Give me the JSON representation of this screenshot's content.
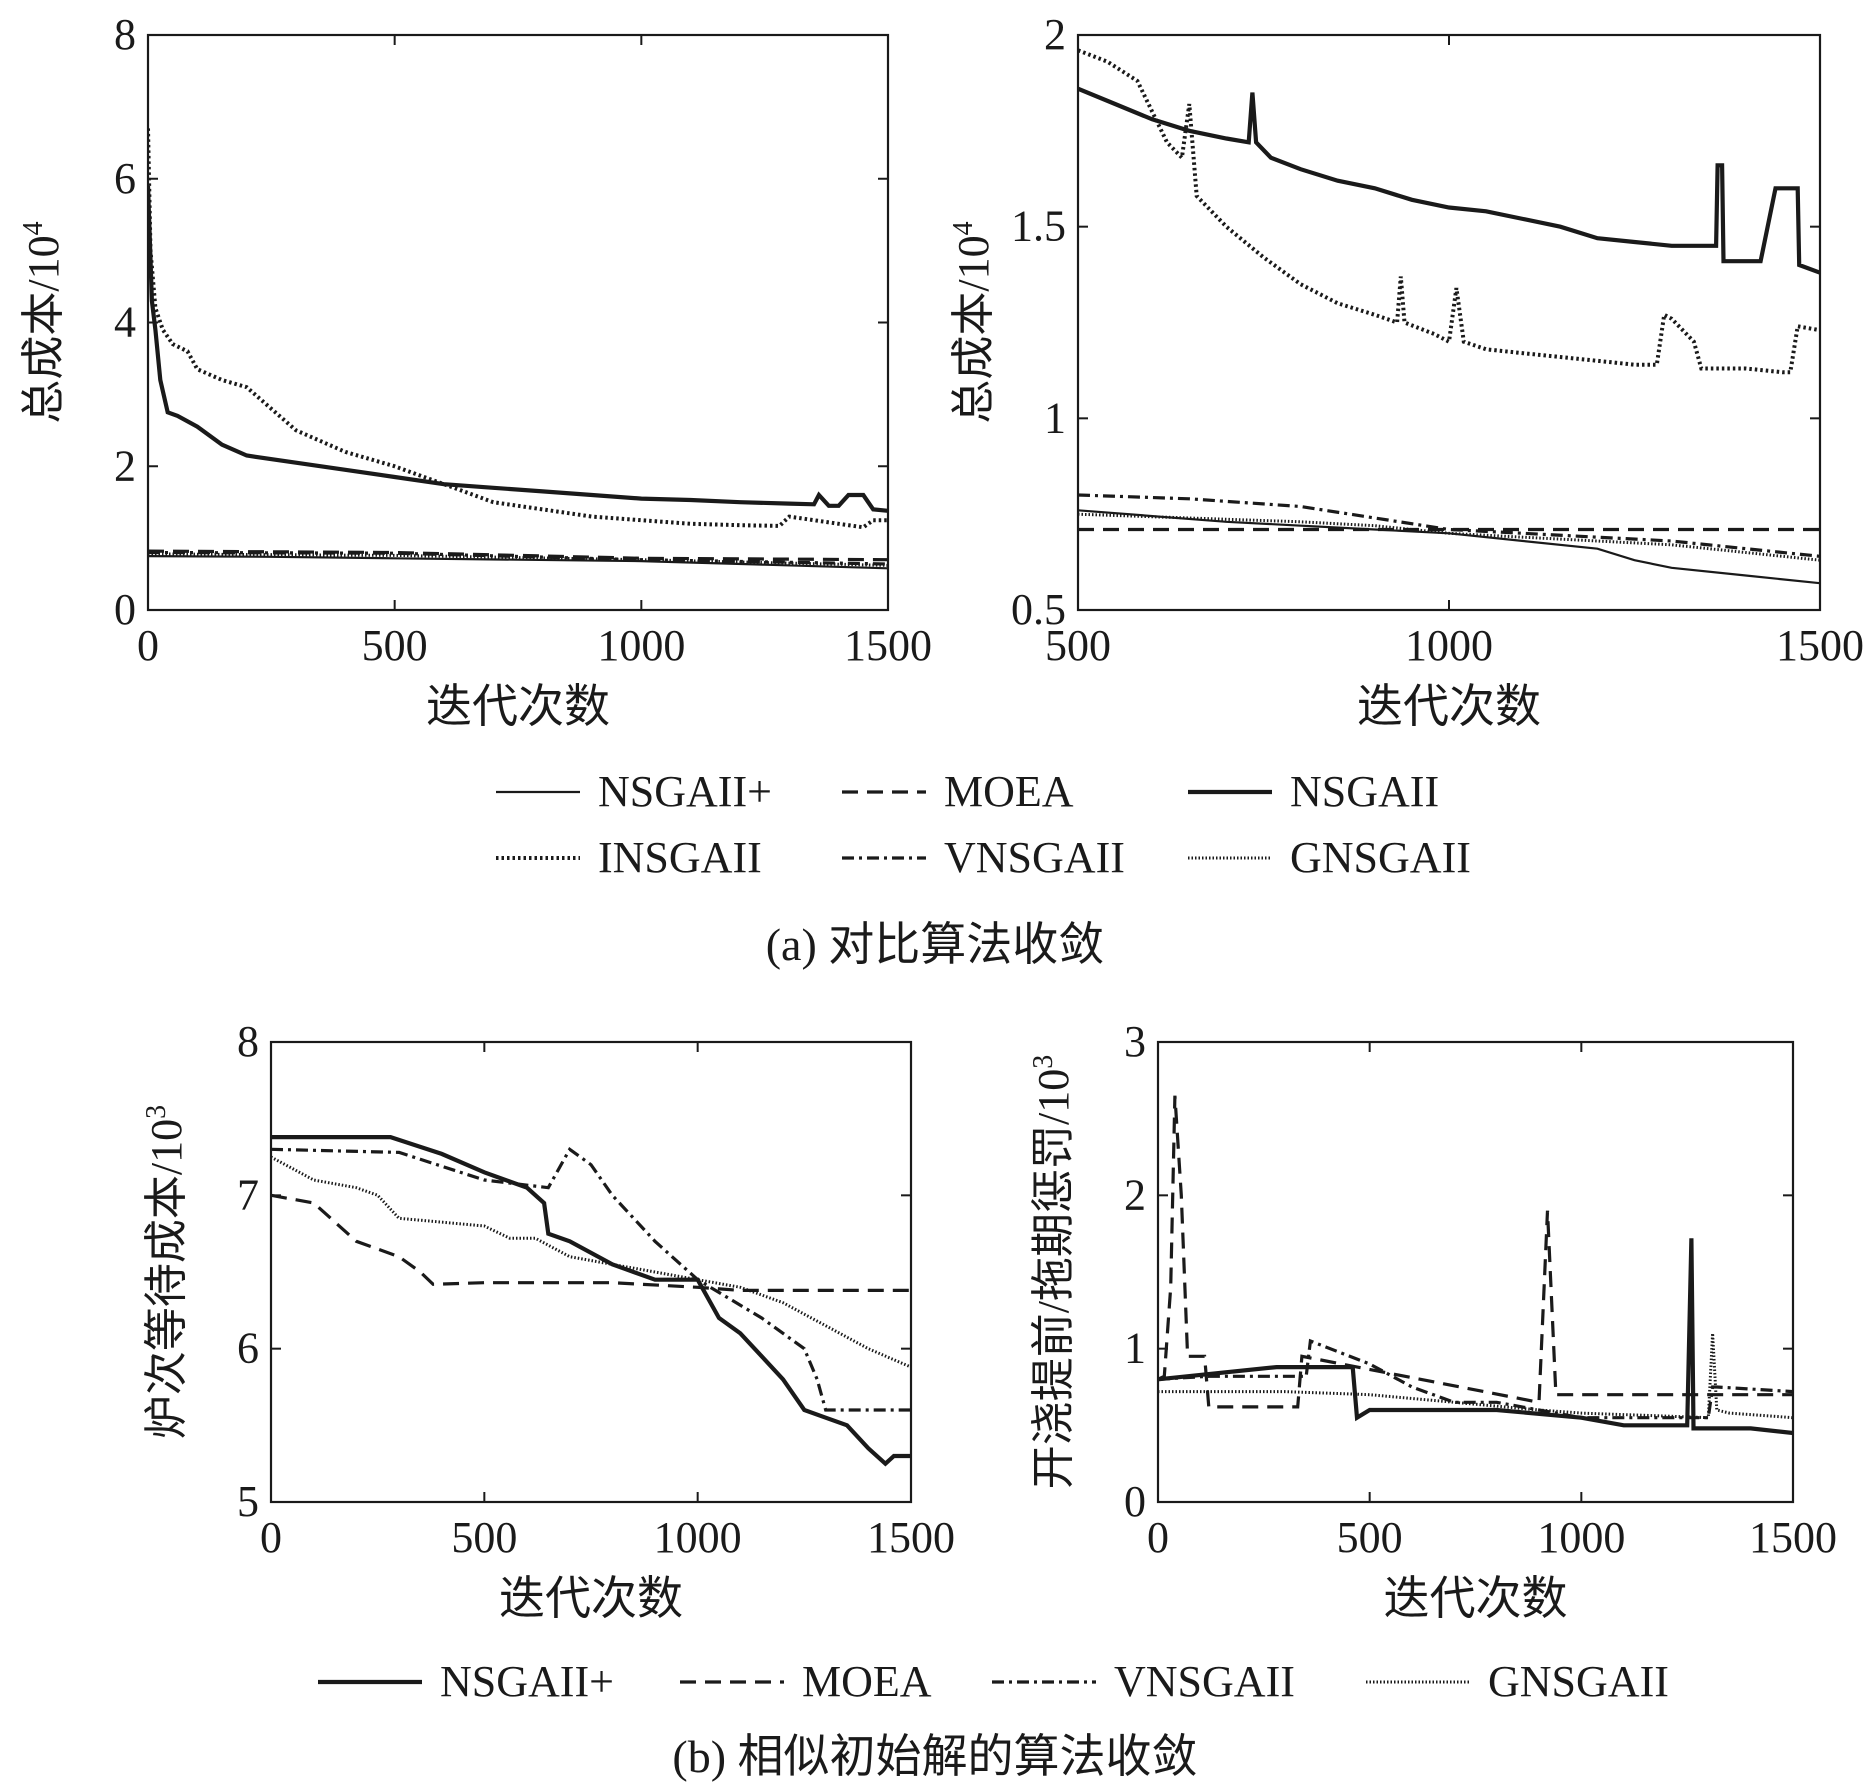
{
  "figure": {
    "panel_a": {
      "caption": "(a) 对比算法收敛",
      "legend": [
        {
          "label": "NSGAII+",
          "style": "thin-solid"
        },
        {
          "label": "MOEA",
          "style": "dashed"
        },
        {
          "label": "NSGAII",
          "style": "thick-solid"
        },
        {
          "label": "INSGAII",
          "style": "dotted"
        },
        {
          "label": "VNSGAII",
          "style": "dash-dot"
        },
        {
          "label": "GNSGAII",
          "style": "fine-dotted"
        }
      ]
    },
    "panel_b": {
      "caption": "(b) 相似初始解的算法收敛",
      "legend": [
        {
          "label": "NSGAII+",
          "style": "thick-solid"
        },
        {
          "label": "MOEA",
          "style": "dashed"
        },
        {
          "label": "VNSGAII",
          "style": "dash-dot"
        },
        {
          "label": "GNSGAII",
          "style": "fine-dotted"
        }
      ]
    }
  },
  "chart_data": [
    {
      "type": "line",
      "panel": "a-left",
      "xlabel": "迭代次数",
      "ylabel": "总成本/10",
      "ylabel_sup": "4",
      "xlim": [
        0,
        1500
      ],
      "ylim": [
        0,
        8
      ],
      "xticks": [
        "0",
        "500",
        "1000",
        "1500"
      ],
      "yticks": [
        "0",
        "2",
        "4",
        "6",
        "8"
      ],
      "series": [
        {
          "name": "NSGAII",
          "style": "thick-solid",
          "x": [
            0,
            8,
            15,
            25,
            40,
            60,
            100,
            150,
            200,
            300,
            400,
            500,
            600,
            700,
            800,
            900,
            1000,
            1100,
            1200,
            1300,
            1350,
            1360,
            1380,
            1400,
            1420,
            1450,
            1470,
            1500
          ],
          "y": [
            5.9,
            4.3,
            3.9,
            3.2,
            2.75,
            2.7,
            2.55,
            2.3,
            2.15,
            2.05,
            1.95,
            1.85,
            1.75,
            1.7,
            1.65,
            1.6,
            1.55,
            1.53,
            1.5,
            1.48,
            1.47,
            1.6,
            1.45,
            1.45,
            1.6,
            1.6,
            1.4,
            1.38
          ]
        },
        {
          "name": "INSGAII",
          "style": "dotted",
          "x": [
            0,
            5,
            15,
            30,
            50,
            80,
            100,
            150,
            200,
            250,
            300,
            400,
            500,
            600,
            700,
            800,
            900,
            1000,
            1100,
            1200,
            1280,
            1300,
            1350,
            1400,
            1450,
            1470,
            1500
          ],
          "y": [
            6.7,
            5.0,
            4.2,
            3.9,
            3.7,
            3.6,
            3.35,
            3.2,
            3.1,
            2.8,
            2.5,
            2.2,
            2.0,
            1.75,
            1.5,
            1.4,
            1.3,
            1.25,
            1.2,
            1.18,
            1.17,
            1.3,
            1.25,
            1.2,
            1.15,
            1.25,
            1.25
          ]
        },
        {
          "name": "NSGAII+",
          "style": "thin-solid",
          "x": [
            0,
            250,
            500,
            750,
            1000,
            1250,
            1500
          ],
          "y": [
            0.75,
            0.74,
            0.72,
            0.7,
            0.68,
            0.63,
            0.58
          ]
        },
        {
          "name": "MOEA",
          "style": "dashed",
          "x": [
            0,
            500,
            1000,
            1500
          ],
          "y": [
            0.82,
            0.8,
            0.72,
            0.7
          ]
        },
        {
          "name": "VNSGAII",
          "style": "dash-dot",
          "x": [
            0,
            500,
            1000,
            1500
          ],
          "y": [
            0.8,
            0.79,
            0.7,
            0.64
          ]
        },
        {
          "name": "GNSGAII",
          "style": "fine-dotted",
          "x": [
            0,
            500,
            1000,
            1500
          ],
          "y": [
            0.78,
            0.76,
            0.7,
            0.62
          ]
        }
      ]
    },
    {
      "type": "line",
      "panel": "a-right",
      "xlabel": "迭代次数",
      "ylabel": "总成本/10",
      "ylabel_sup": "4",
      "xlim": [
        500,
        1500
      ],
      "ylim": [
        0.5,
        2
      ],
      "xticks": [
        "500",
        "1000",
        "1500"
      ],
      "yticks": [
        "0.5",
        "1",
        "1.5",
        "2"
      ],
      "series": [
        {
          "name": "NSGAII",
          "style": "thick-solid",
          "x": [
            500,
            550,
            600,
            650,
            700,
            730,
            735,
            740,
            760,
            800,
            850,
            900,
            950,
            1000,
            1050,
            1100,
            1150,
            1200,
            1250,
            1300,
            1360,
            1362,
            1368,
            1370,
            1420,
            1440,
            1470,
            1472,
            1500
          ],
          "y": [
            1.86,
            1.82,
            1.78,
            1.75,
            1.73,
            1.72,
            1.85,
            1.72,
            1.68,
            1.65,
            1.62,
            1.6,
            1.57,
            1.55,
            1.54,
            1.52,
            1.5,
            1.47,
            1.46,
            1.45,
            1.45,
            1.66,
            1.66,
            1.41,
            1.41,
            1.6,
            1.6,
            1.4,
            1.38
          ]
        },
        {
          "name": "INSGAII",
          "style": "dotted",
          "x": [
            500,
            540,
            580,
            600,
            620,
            640,
            650,
            660,
            700,
            750,
            800,
            850,
            900,
            930,
            935,
            940,
            980,
            1000,
            1010,
            1020,
            1050,
            1100,
            1150,
            1200,
            1250,
            1280,
            1290,
            1300,
            1330,
            1340,
            1400,
            1450,
            1460,
            1470,
            1500
          ],
          "y": [
            1.96,
            1.93,
            1.88,
            1.8,
            1.72,
            1.68,
            1.82,
            1.58,
            1.5,
            1.42,
            1.35,
            1.3,
            1.27,
            1.25,
            1.37,
            1.25,
            1.22,
            1.2,
            1.34,
            1.2,
            1.18,
            1.17,
            1.16,
            1.15,
            1.14,
            1.14,
            1.27,
            1.26,
            1.2,
            1.13,
            1.13,
            1.12,
            1.12,
            1.24,
            1.23
          ]
        },
        {
          "name": "NSGAII+",
          "style": "thin-solid",
          "x": [
            500,
            700,
            900,
            1000,
            1100,
            1200,
            1250,
            1300,
            1400,
            1500
          ],
          "y": [
            0.76,
            0.73,
            0.71,
            0.7,
            0.68,
            0.66,
            0.63,
            0.61,
            0.59,
            0.57
          ]
        },
        {
          "name": "MOEA",
          "style": "dashed",
          "x": [
            500,
            700,
            900,
            1000,
            1200,
            1300,
            1500
          ],
          "y": [
            0.71,
            0.71,
            0.71,
            0.71,
            0.71,
            0.71,
            0.71
          ]
        },
        {
          "name": "VNSGAII",
          "style": "dash-dot",
          "x": [
            500,
            650,
            800,
            900,
            1000,
            1100,
            1200,
            1300,
            1400,
            1500
          ],
          "y": [
            0.8,
            0.79,
            0.77,
            0.74,
            0.71,
            0.7,
            0.69,
            0.68,
            0.66,
            0.64
          ]
        },
        {
          "name": "GNSGAII",
          "style": "fine-dotted",
          "x": [
            500,
            650,
            800,
            900,
            1000,
            1100,
            1200,
            1300,
            1400,
            1500
          ],
          "y": [
            0.75,
            0.74,
            0.73,
            0.72,
            0.7,
            0.69,
            0.68,
            0.67,
            0.65,
            0.63
          ]
        }
      ]
    },
    {
      "type": "line",
      "panel": "b-left",
      "xlabel": "迭代次数",
      "ylabel": "炉次等待成本/10",
      "ylabel_sup": "3",
      "xlim": [
        0,
        1500
      ],
      "ylim": [
        5,
        8
      ],
      "xticks": [
        "0",
        "500",
        "1000",
        "1500"
      ],
      "yticks": [
        "5",
        "6",
        "7",
        "8"
      ],
      "series": [
        {
          "name": "NSGAII+",
          "style": "thick-solid",
          "x": [
            0,
            280,
            400,
            500,
            600,
            640,
            650,
            700,
            800,
            900,
            1000,
            1050,
            1100,
            1150,
            1200,
            1250,
            1300,
            1350,
            1400,
            1440,
            1460,
            1500
          ],
          "y": [
            7.38,
            7.38,
            7.27,
            7.15,
            7.05,
            6.95,
            6.75,
            6.7,
            6.55,
            6.45,
            6.45,
            6.2,
            6.1,
            5.95,
            5.8,
            5.6,
            5.55,
            5.5,
            5.35,
            5.25,
            5.3,
            5.3
          ]
        },
        {
          "name": "MOEA",
          "style": "dashed",
          "x": [
            0,
            100,
            200,
            300,
            350,
            380,
            500,
            800,
            1000,
            1100,
            1500
          ],
          "y": [
            7.0,
            6.95,
            6.7,
            6.6,
            6.5,
            6.42,
            6.43,
            6.43,
            6.4,
            6.38,
            6.38
          ]
        },
        {
          "name": "VNSGAII",
          "style": "dash-dot",
          "x": [
            0,
            300,
            500,
            650,
            700,
            750,
            800,
            900,
            1000,
            1150,
            1250,
            1280,
            1300,
            1350,
            1500
          ],
          "y": [
            7.3,
            7.28,
            7.1,
            7.05,
            7.3,
            7.2,
            7.0,
            6.7,
            6.45,
            6.2,
            6.0,
            5.8,
            5.6,
            5.6,
            5.6
          ]
        },
        {
          "name": "GNSGAII",
          "style": "fine-dotted",
          "x": [
            0,
            100,
            200,
            250,
            300,
            500,
            560,
            620,
            700,
            900,
            1000,
            1100,
            1200,
            1300,
            1400,
            1500
          ],
          "y": [
            7.25,
            7.1,
            7.05,
            7.0,
            6.85,
            6.8,
            6.72,
            6.72,
            6.6,
            6.5,
            6.45,
            6.4,
            6.3,
            6.15,
            6.0,
            5.88
          ]
        }
      ]
    },
    {
      "type": "line",
      "panel": "b-right",
      "xlabel": "迭代次数",
      "ylabel": "开浇提前/拖期惩罚/10",
      "ylabel_sup": "3",
      "xlim": [
        0,
        1500
      ],
      "ylim": [
        0,
        3
      ],
      "xticks": [
        "0",
        "500",
        "1000",
        "1500"
      ],
      "yticks": [
        "0",
        "1",
        "2",
        "3"
      ],
      "series": [
        {
          "name": "NSGAII+",
          "style": "thick-solid",
          "x": [
            0,
            280,
            460,
            470,
            500,
            600,
            620,
            700,
            800,
            1000,
            1100,
            1200,
            1250,
            1260,
            1265,
            1300,
            1400,
            1500
          ],
          "y": [
            0.8,
            0.88,
            0.88,
            0.55,
            0.6,
            0.6,
            0.6,
            0.6,
            0.6,
            0.55,
            0.5,
            0.5,
            0.5,
            1.72,
            0.48,
            0.48,
            0.48,
            0.45
          ]
        },
        {
          "name": "MOEA",
          "style": "dashed",
          "x": [
            0,
            15,
            30,
            40,
            55,
            70,
            110,
            120,
            330,
            340,
            900,
            920,
            940,
            1000,
            1200,
            1500
          ],
          "y": [
            0.8,
            0.82,
            1.4,
            2.65,
            2.0,
            0.95,
            0.95,
            0.62,
            0.62,
            0.95,
            0.65,
            1.9,
            0.7,
            0.7,
            0.7,
            0.7
          ]
        },
        {
          "name": "VNSGAII",
          "style": "dash-dot",
          "x": [
            0,
            120,
            350,
            360,
            500,
            600,
            700,
            800,
            900,
            1000,
            1200,
            1300,
            1310,
            1320,
            1500
          ],
          "y": [
            0.8,
            0.82,
            0.82,
            1.05,
            0.9,
            0.75,
            0.65,
            0.65,
            0.6,
            0.55,
            0.55,
            0.55,
            0.75,
            0.75,
            0.72
          ]
        },
        {
          "name": "GNSGAII",
          "style": "fine-dotted",
          "x": [
            0,
            300,
            500,
            700,
            900,
            1000,
            1200,
            1300,
            1310,
            1320,
            1350,
            1500
          ],
          "y": [
            0.72,
            0.72,
            0.7,
            0.65,
            0.6,
            0.58,
            0.56,
            0.55,
            1.1,
            0.6,
            0.58,
            0.55
          ]
        }
      ]
    }
  ]
}
